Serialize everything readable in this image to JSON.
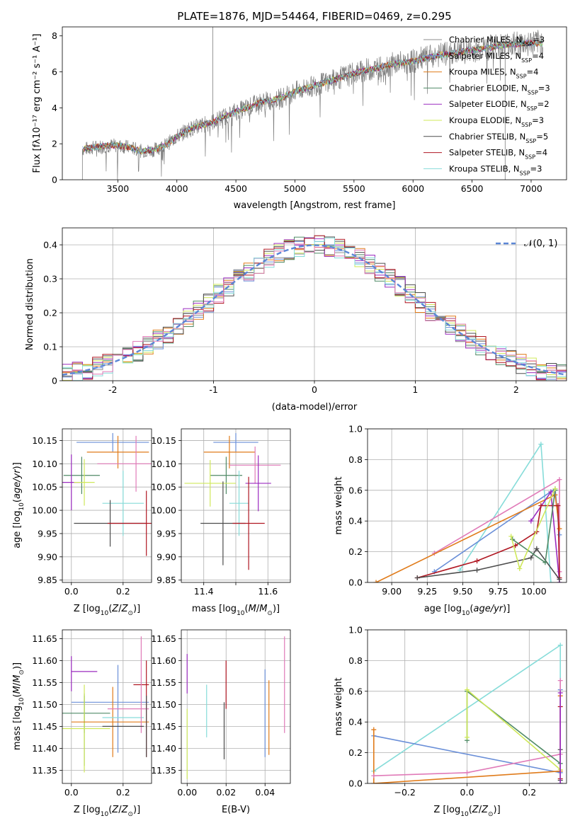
{
  "figure": {
    "title": "PLATE=1876, MJD=54464, FIBERID=0469, z=0.295"
  },
  "colors": {
    "Chabrier MILES": "#8c8c8c",
    "Salpeter MILES": "#6a8fd8",
    "Kroupa MILES": "#e07b1a",
    "Chabrier ELODIE": "#4f8a66",
    "Salpeter ELODIE": "#9b2bbf",
    "Kroupa ELODIE": "#cfe85a",
    "Chabrier STELIB": "#4d4d4d",
    "Salpeter STELIB": "#b01722",
    "Kroupa STELIB": "#86dcd9",
    "extra": "#e07ab8",
    "normal": "#5b86d6"
  },
  "chart_data": [
    {
      "id": "spectrum",
      "type": "line",
      "xlabel": "wavelength [Angstrom, rest frame]",
      "ylabel": "Flux [fλ10⁻¹⁷ erg cm⁻² s⁻¹ A⁻¹]",
      "xlim": [
        3030,
        7300
      ],
      "ylim": [
        0,
        8.5
      ],
      "xticks": [
        3500,
        4000,
        4500,
        5000,
        5500,
        6000,
        6500,
        7000
      ],
      "yticks": [
        0,
        2,
        4,
        6,
        8
      ],
      "grid": false,
      "legend_position": "right",
      "legend": [
        {
          "name": "Chabrier MILES",
          "nssp": "3"
        },
        {
          "name": "Salpeter MILES",
          "nssp": "4"
        },
        {
          "name": "Kroupa MILES",
          "nssp": "4"
        },
        {
          "name": "Chabrier ELODIE",
          "nssp": "3"
        },
        {
          "name": "Salpeter ELODIE",
          "nssp": "2"
        },
        {
          "name": "Kroupa ELODIE",
          "nssp": "3"
        },
        {
          "name": "Chabrier STELIB",
          "nssp": "5"
        },
        {
          "name": "Salpeter STELIB",
          "nssp": "4"
        },
        {
          "name": "Kroupa STELIB",
          "nssp": "3"
        }
      ],
      "continuum": {
        "x": [
          3200,
          3300,
          3400,
          3500,
          3600,
          3700,
          3800,
          3900,
          4000,
          4100,
          4200,
          4300,
          4400,
          4500,
          4600,
          4700,
          4800,
          4900,
          5000,
          5100,
          5200,
          5300,
          5400,
          5500,
          5600,
          5700,
          5800,
          5900,
          6000,
          6200,
          6400,
          6600,
          6800,
          7000,
          7100
        ],
        "y": [
          1.7,
          1.8,
          1.9,
          1.9,
          1.8,
          1.6,
          1.65,
          1.9,
          2.4,
          2.8,
          3.0,
          3.2,
          3.5,
          3.8,
          4.0,
          4.3,
          4.4,
          4.6,
          4.9,
          5.1,
          5.3,
          5.5,
          5.7,
          5.9,
          6.1,
          6.2,
          6.4,
          6.5,
          6.6,
          6.9,
          7.1,
          7.3,
          7.5,
          7.6,
          7.6
        ]
      },
      "spikes": [
        {
          "x": 3200,
          "ylow": 0.0
        },
        {
          "x": 4305,
          "yhigh": 8.5
        },
        {
          "x": 6780,
          "ylow": 0.0
        }
      ]
    },
    {
      "id": "residuals",
      "type": "histogram",
      "xlabel": "(data-model)/error",
      "ylabel": "Normed distribution",
      "xlim": [
        -2.5,
        2.5
      ],
      "ylim": [
        0,
        0.45
      ],
      "xticks": [
        -2,
        -1,
        0,
        1,
        2
      ],
      "yticks": [
        0.0,
        0.1,
        0.2,
        0.3,
        0.4
      ],
      "grid": true,
      "legend_position": "upper right",
      "normal_label": "𝒩(0, 1)"
    },
    {
      "id": "age-Z",
      "type": "errorbar",
      "xlabel": "Z [log₁₀(Z/Z⊙)]",
      "ylabel": "age  [log₁₀(age/yr)]",
      "xlim": [
        -0.035,
        0.31
      ],
      "ylim": [
        9.845,
        10.175
      ],
      "xticks": [
        0.0,
        0.2
      ],
      "xticklabels": [
        "0.0",
        "0.2"
      ],
      "yticks": [
        9.85,
        9.9,
        9.95,
        10.0,
        10.05,
        10.1,
        10.15
      ],
      "yticklabels": [
        "9.85",
        "9.90",
        "9.95",
        "10.00",
        "10.05",
        "10.10",
        "10.15"
      ],
      "points": [
        {
          "x": 0.16,
          "y": 10.146,
          "xerr": 0.14,
          "yerr": 0.02,
          "c": "Salpeter MILES"
        },
        {
          "x": 0.18,
          "y": 10.125,
          "xerr": 0.12,
          "yerr": 0.035,
          "c": "Kroupa MILES"
        },
        {
          "x": 0.25,
          "y": 10.1,
          "xerr": 0.15,
          "yerr": 0.06,
          "c": "extra"
        },
        {
          "x": 0.04,
          "y": 10.075,
          "xerr": 0.07,
          "yerr": 0.04,
          "c": "Chabrier ELODIE"
        },
        {
          "x": 0.0,
          "y": 10.06,
          "xerr": 0.035,
          "yerr": 0.06,
          "c": "Salpeter ELODIE"
        },
        {
          "x": 0.05,
          "y": 10.06,
          "xerr": 0.04,
          "yerr": 0.05,
          "c": "Kroupa ELODIE"
        },
        {
          "x": 0.2,
          "y": 10.015,
          "xerr": 0.08,
          "yerr": 0.07,
          "c": "Kroupa STELIB"
        },
        {
          "x": 0.15,
          "y": 9.972,
          "xerr": 0.14,
          "yerr": 0.05,
          "c": "Chabrier STELIB"
        },
        {
          "x": 0.29,
          "y": 9.972,
          "xerr": 0.15,
          "yerr": 0.07,
          "c": "Salpeter STELIB"
        }
      ]
    },
    {
      "id": "age-mass",
      "type": "errorbar",
      "xlabel": "mass [log₁₀(M/M⊙)]",
      "ylabel": "",
      "xlim": [
        11.33,
        11.67
      ],
      "ylim": [
        9.845,
        10.175
      ],
      "xticks": [
        11.4,
        11.5,
        11.6
      ],
      "xticklabels": [
        "11.4",
        "",
        "11.6"
      ],
      "yticks": [
        9.85,
        9.9,
        9.95,
        10.0,
        10.05,
        10.1,
        10.15
      ],
      "yticklabels": [
        "9.85",
        "9.90",
        "9.95",
        "10.00",
        "10.05",
        "10.10",
        "10.15"
      ],
      "points": [
        {
          "x": 11.5,
          "y": 10.146,
          "xerr": 0.07,
          "yerr": 0.02,
          "c": "Salpeter MILES"
        },
        {
          "x": 11.48,
          "y": 10.125,
          "xerr": 0.08,
          "yerr": 0.035,
          "c": "Kroupa MILES"
        },
        {
          "x": 11.56,
          "y": 10.097,
          "xerr": 0.08,
          "yerr": 0.04,
          "c": "extra"
        },
        {
          "x": 11.47,
          "y": 10.075,
          "xerr": 0.05,
          "yerr": 0.04,
          "c": "Chabrier ELODIE"
        },
        {
          "x": 11.57,
          "y": 10.058,
          "xerr": 0.04,
          "yerr": 0.06,
          "c": "Salpeter ELODIE"
        },
        {
          "x": 11.42,
          "y": 10.058,
          "xerr": 0.08,
          "yerr": 0.05,
          "c": "Kroupa ELODIE"
        },
        {
          "x": 11.51,
          "y": 10.015,
          "xerr": 0.03,
          "yerr": 0.07,
          "c": "Kroupa STELIB"
        },
        {
          "x": 11.46,
          "y": 9.972,
          "xerr": 0.07,
          "yerr": 0.09,
          "c": "Chabrier STELIB"
        },
        {
          "x": 11.54,
          "y": 9.972,
          "xerr": 0.05,
          "yerr": 0.1,
          "c": "Salpeter STELIB"
        }
      ]
    },
    {
      "id": "mass-Z",
      "type": "errorbar",
      "xlabel": "Z [log₁₀(Z/Z⊙)]",
      "ylabel": "mass [log₁₀(M/M⊙)]",
      "xlim": [
        -0.035,
        0.31
      ],
      "ylim": [
        11.32,
        11.67
      ],
      "xticks": [
        0.0,
        0.2
      ],
      "xticklabels": [
        "0.0",
        "0.2"
      ],
      "yticks": [
        11.35,
        11.4,
        11.45,
        11.5,
        11.55,
        11.6,
        11.65
      ],
      "yticklabels": [
        "11.35",
        "11.40",
        "11.45",
        "11.50",
        "11.55",
        "11.60",
        "11.65"
      ],
      "points": [
        {
          "x": 0.0,
          "y": 11.57,
          "xerr": 0.0,
          "yerr": 0.04,
          "c": "Salpeter ELODIE"
        },
        {
          "x": 0.05,
          "y": 11.575,
          "xerr": 0.05,
          "yerr": 0.0,
          "c": "Salpeter ELODIE"
        },
        {
          "x": 0.15,
          "y": 11.505,
          "xerr": 0.15,
          "yerr": 0.0,
          "c": "Salpeter MILES"
        },
        {
          "x": 0.18,
          "y": 11.49,
          "xerr": 0.0,
          "yerr": 0.1,
          "c": "Salpeter MILES"
        },
        {
          "x": 0.27,
          "y": 11.545,
          "xerr": 0.03,
          "yerr": 0.0,
          "c": "Salpeter STELIB"
        },
        {
          "x": 0.29,
          "y": 11.49,
          "xerr": 0.0,
          "yerr": 0.11,
          "c": "Salpeter STELIB"
        },
        {
          "x": 0.05,
          "y": 11.48,
          "xerr": 0.1,
          "yerr": 0.045,
          "c": "Chabrier ELODIE"
        },
        {
          "x": 0.05,
          "y": 11.44,
          "xerr": 0.0,
          "yerr": 0.08,
          "c": "Chabrier ELODIE"
        },
        {
          "x": 0.05,
          "y": 11.445,
          "xerr": 0.1,
          "yerr": 0.1,
          "c": "Kroupa ELODIE"
        },
        {
          "x": 0.15,
          "y": 11.46,
          "xerr": 0.15,
          "yerr": 0.0,
          "c": "Kroupa MILES"
        },
        {
          "x": 0.16,
          "y": 11.46,
          "xerr": 0.0,
          "yerr": 0.08,
          "c": "Kroupa MILES"
        },
        {
          "x": 0.2,
          "y": 11.47,
          "xerr": 0.08,
          "yerr": 0.0,
          "c": "Kroupa STELIB"
        },
        {
          "x": 0.27,
          "y": 11.545,
          "xerr": 0.0,
          "yerr": 0.11,
          "c": "extra"
        },
        {
          "x": 0.22,
          "y": 11.49,
          "xerr": 0.08,
          "yerr": 0.0,
          "c": "extra"
        },
        {
          "x": 0.2,
          "y": 11.45,
          "xerr": 0.08,
          "yerr": 0.0,
          "c": "Chabrier STELIB"
        },
        {
          "x": 0.29,
          "y": 11.45,
          "xerr": 0.0,
          "yerr": 0.07,
          "c": "Chabrier STELIB"
        }
      ]
    },
    {
      "id": "mass-EBV",
      "type": "errorbar",
      "xlabel": "E(B-V)",
      "ylabel": "",
      "xlim": [
        -0.003,
        0.053
      ],
      "ylim": [
        11.32,
        11.67
      ],
      "xticks": [
        0.0,
        0.02,
        0.04
      ],
      "xticklabels": [
        "0.00",
        "0.02",
        "0.04"
      ],
      "yticks": [
        11.35,
        11.4,
        11.45,
        11.5,
        11.55,
        11.6,
        11.65
      ],
      "yticklabels": [
        "11.35",
        "11.40",
        "11.45",
        "11.50",
        "11.55",
        "11.60",
        "11.65"
      ],
      "points": [
        {
          "x": 0.0,
          "y": 11.57,
          "xerr": 0.0,
          "yerr": 0.045,
          "c": "Salpeter ELODIE"
        },
        {
          "x": 0.0,
          "y": 11.41,
          "xerr": 0.0,
          "yerr": 0.08,
          "c": "Kroupa ELODIE"
        },
        {
          "x": 0.01,
          "y": 11.485,
          "xerr": 0.0,
          "yerr": 0.06,
          "c": "Kroupa STELIB"
        },
        {
          "x": 0.019,
          "y": 11.44,
          "xerr": 0.0,
          "yerr": 0.065,
          "c": "Chabrier STELIB"
        },
        {
          "x": 0.02,
          "y": 11.545,
          "xerr": 0.0,
          "yerr": 0.055,
          "c": "Salpeter STELIB"
        },
        {
          "x": 0.04,
          "y": 11.48,
          "xerr": 0.0,
          "yerr": 0.1,
          "c": "Salpeter MILES"
        },
        {
          "x": 0.042,
          "y": 11.47,
          "xerr": 0.0,
          "yerr": 0.085,
          "c": "Kroupa MILES"
        },
        {
          "x": 0.05,
          "y": 11.545,
          "xerr": 0.0,
          "yerr": 0.11,
          "c": "extra"
        }
      ]
    },
    {
      "id": "weight-age",
      "type": "line",
      "xlabel": "age  [log₁₀(age/yr)]",
      "ylabel": "mass weight",
      "xlim": [
        8.83,
        10.23
      ],
      "ylim": [
        0,
        1
      ],
      "xticks": [
        9.0,
        9.25,
        9.5,
        9.75,
        10.0
      ],
      "xticklabels": [
        "9.00",
        "9.25",
        "9.50",
        "9.75",
        "10.00"
      ],
      "yticks": [
        0.0,
        0.2,
        0.4,
        0.6,
        0.8,
        1.0
      ],
      "yticklabels": [
        "0.0",
        "0.2",
        "0.4",
        "0.6",
        "0.8",
        "1.0"
      ],
      "grid": true,
      "series": [
        {
          "c": "Kroupa STELIB",
          "x": [
            9.48,
            10.05,
            10.12
          ],
          "y": [
            0.08,
            0.9,
            0.0
          ]
        },
        {
          "c": "extra",
          "x": [
            9.3,
            10.18,
            10.18
          ],
          "y": [
            0.19,
            0.67,
            0.07
          ]
        },
        {
          "c": "Salpeter MILES",
          "x": [
            9.3,
            10.15,
            10.18
          ],
          "y": [
            0.07,
            0.61,
            0.31
          ]
        },
        {
          "c": "Kroupa MILES",
          "x": [
            8.89,
            10.15,
            10.18
          ],
          "y": [
            0.0,
            0.57,
            0.35
          ]
        },
        {
          "c": "Salpeter ELODIE",
          "x": [
            9.98,
            10.12,
            10.18
          ],
          "y": [
            0.4,
            0.59,
            0.0
          ]
        },
        {
          "c": "Salpeter STELIB",
          "x": [
            9.18,
            9.6,
            9.87,
            10.02,
            10.05,
            10.17,
            10.18
          ],
          "y": [
            0.03,
            0.14,
            0.24,
            0.33,
            0.5,
            0.5,
            0.03
          ]
        },
        {
          "c": "Chabrier STELIB",
          "x": [
            9.18,
            9.6,
            9.98,
            10.02,
            10.18
          ],
          "y": [
            0.03,
            0.08,
            0.16,
            0.22,
            0.02
          ]
        },
        {
          "c": "Chabrier ELODIE",
          "x": [
            9.85,
            10.08,
            10.15
          ],
          "y": [
            0.28,
            0.13,
            0.6
          ]
        },
        {
          "c": "Kroupa ELODIE",
          "x": [
            9.84,
            9.9,
            10.15
          ],
          "y": [
            0.3,
            0.09,
            0.61
          ]
        }
      ]
    },
    {
      "id": "weight-Z",
      "type": "line",
      "xlabel": "Z [log₁₀(Z/Z⊙)]",
      "ylabel": "mass weight",
      "xlim": [
        -0.32,
        0.32
      ],
      "ylim": [
        0,
        1
      ],
      "xticks": [
        -0.2,
        0.0,
        0.2
      ],
      "xticklabels": [
        "−0.2",
        "0.0",
        "0.2"
      ],
      "yticks": [
        0.0,
        0.2,
        0.4,
        0.6,
        0.8,
        1.0
      ],
      "yticklabels": [
        "0.0",
        "0.2",
        "0.4",
        "0.6",
        "0.8",
        "1.0"
      ],
      "grid": true,
      "series": [
        {
          "c": "Kroupa STELIB",
          "x": [
            -0.3,
            0.3,
            0.3
          ],
          "y": [
            0.08,
            0.9,
            0.0
          ]
        },
        {
          "c": "Salpeter MILES",
          "x": [
            -0.3,
            0.3,
            0.3
          ],
          "y": [
            0.31,
            0.07,
            0.61
          ]
        },
        {
          "c": "Kroupa MILES",
          "x": [
            -0.3,
            -0.3,
            0.3,
            0.3
          ],
          "y": [
            0.35,
            0.0,
            0.08,
            0.57
          ]
        },
        {
          "c": "extra",
          "x": [
            -0.3,
            0.0,
            0.3,
            0.3
          ],
          "y": [
            0.05,
            0.07,
            0.19,
            0.67
          ]
        },
        {
          "c": "Chabrier ELODIE",
          "x": [
            0.0,
            0.0,
            0.3
          ],
          "y": [
            0.28,
            0.6,
            0.13
          ]
        },
        {
          "c": "Kroupa ELODIE",
          "x": [
            0.0,
            0.0,
            0.3
          ],
          "y": [
            0.3,
            0.61,
            0.09
          ]
        },
        {
          "c": "Salpeter STELIB",
          "x": [
            0.3,
            0.3
          ],
          "y": [
            0.03,
            0.5
          ]
        },
        {
          "c": "Chabrier STELIB",
          "x": [
            0.3,
            0.3
          ],
          "y": [
            0.02,
            0.22
          ]
        },
        {
          "c": "Salpeter ELODIE",
          "x": [
            0.3,
            0.3
          ],
          "y": [
            0.0,
            0.59
          ]
        }
      ]
    }
  ]
}
